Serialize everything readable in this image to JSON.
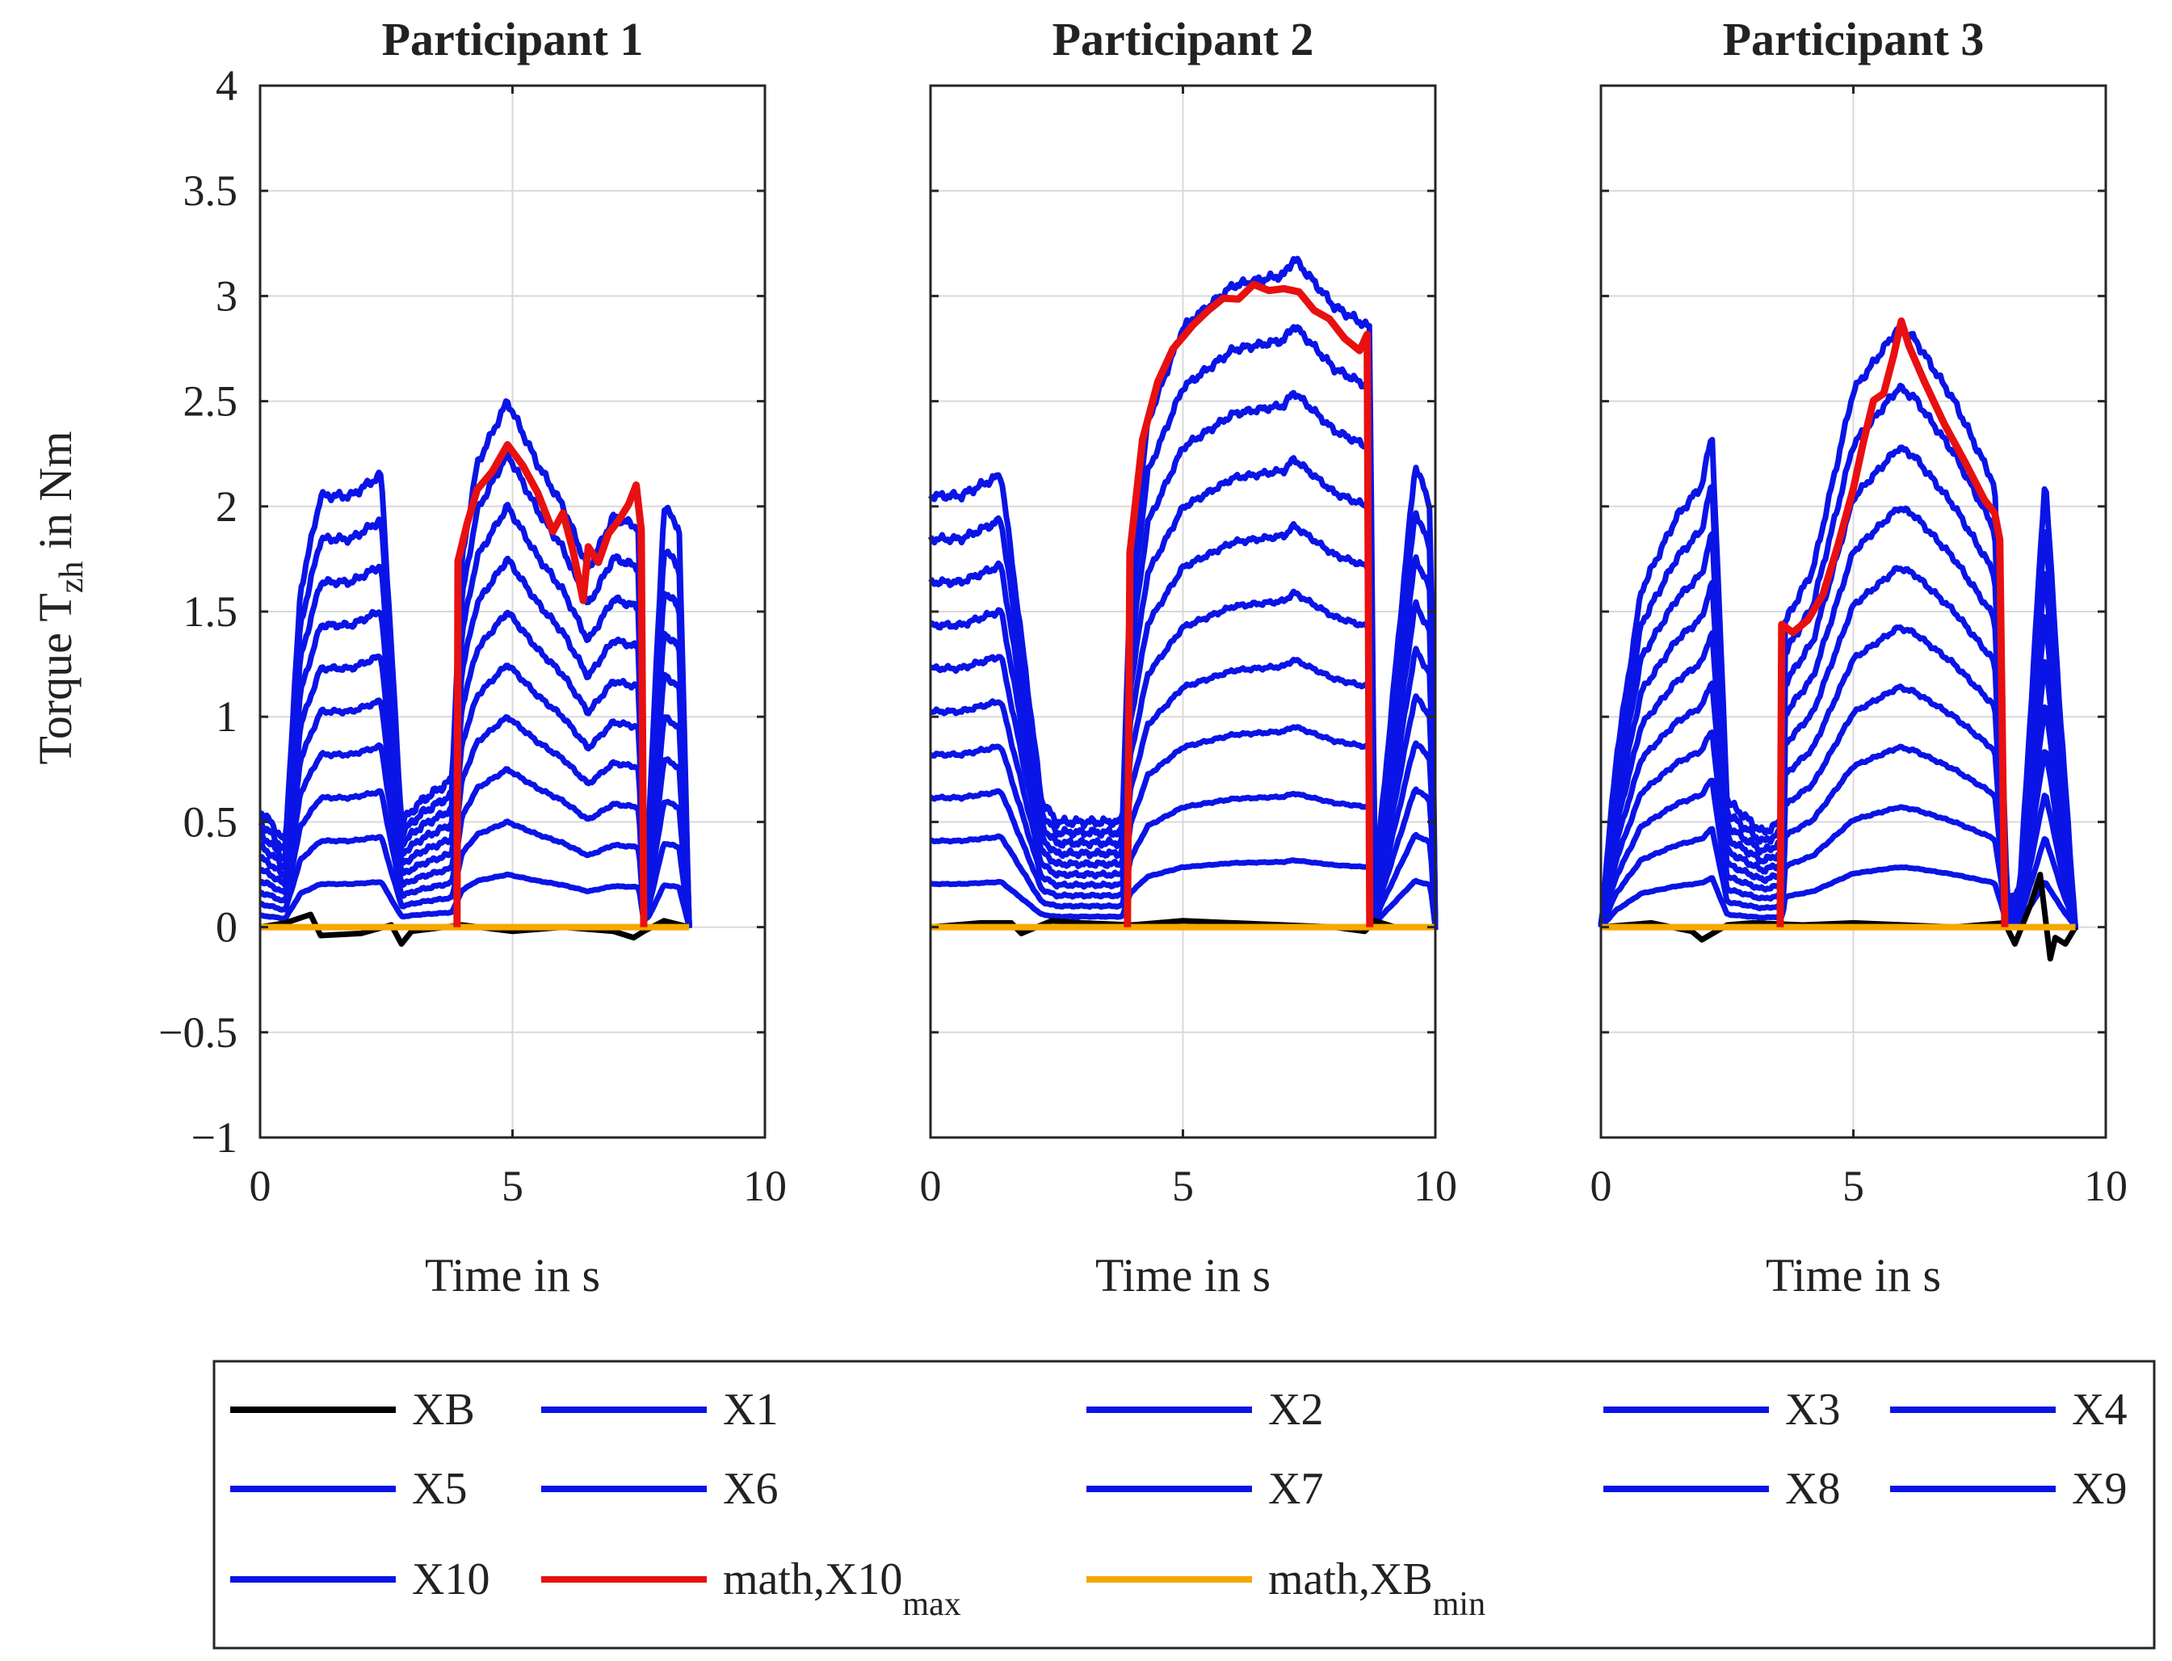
{
  "chart_data": {
    "type": "line",
    "ylabel": "Torque T",
    "ylabel_sub": "zh",
    "ylabel_suffix": " in Nm",
    "xlabel": "Time in s",
    "xlim": [
      0,
      10
    ],
    "ylim": [
      -1,
      4
    ],
    "xticks": [
      0,
      5,
      10
    ],
    "yticks": [
      -1,
      -0.5,
      0,
      0.5,
      1,
      1.5,
      2,
      2.5,
      3,
      3.5,
      4
    ],
    "ytick_labels": [
      "−1",
      "−0.5",
      "0",
      "0.5",
      "1",
      "1.5",
      "2",
      "2.5",
      "3",
      "3.5",
      "4"
    ],
    "grid": true,
    "legend": [
      {
        "label": "XB",
        "color": "#000000"
      },
      {
        "label": "X1",
        "color": "#0a14e6"
      },
      {
        "label": "X2",
        "color": "#0a14e6"
      },
      {
        "label": "X3",
        "color": "#0a14e6"
      },
      {
        "label": "X4",
        "color": "#0a14e6"
      },
      {
        "label": "X5",
        "color": "#0a14e6"
      },
      {
        "label": "X6",
        "color": "#0a14e6"
      },
      {
        "label": "X7",
        "color": "#0a14e6"
      },
      {
        "label": "X8",
        "color": "#0a14e6"
      },
      {
        "label": "X9",
        "color": "#0a14e6"
      },
      {
        "label": "X10",
        "color": "#0a14e6"
      },
      {
        "label": "math,X10",
        "sub": "max",
        "color": "#e81010"
      },
      {
        "label": "math,XB",
        "sub": "min",
        "color": "#f5a800"
      }
    ],
    "colors": {
      "xb": "#000000",
      "x": "#0a14e6",
      "max": "#e81010",
      "min": "#f5a800"
    },
    "panels": [
      {
        "title": "Participant 1",
        "x10_envelope": {
          "x": [
            0,
            0.2,
            0.5,
            0.8,
            1.2,
            1.8,
            2.4,
            2.8,
            3.2,
            3.8,
            4.0,
            4.3,
            4.9,
            5.5,
            6.0,
            6.5,
            7.0,
            7.5,
            7.6,
            7.7,
            8.0,
            8.3,
            8.5
          ],
          "y": [
            0.55,
            0.5,
            0.4,
            1.6,
            2.05,
            2.05,
            2.15,
            0.5,
            0.6,
            0.7,
            1.75,
            2.2,
            2.5,
            2.2,
            2.0,
            1.7,
            1.95,
            1.9,
            0.3,
            0.5,
            2.0,
            1.9,
            0.0
          ]
        },
        "xb": {
          "x": [
            0,
            0.5,
            1.0,
            1.2,
            2.0,
            2.6,
            2.8,
            3.0,
            4.0,
            5.0,
            6.0,
            7.0,
            7.4,
            7.6,
            8.0,
            8.5
          ],
          "y": [
            0.0,
            0.02,
            0.06,
            -0.04,
            -0.03,
            0.01,
            -0.08,
            -0.02,
            0.01,
            -0.02,
            0.0,
            -0.02,
            -0.05,
            -0.02,
            0.03,
            0.0
          ]
        },
        "max_line": {
          "x": [
            3.9,
            3.92,
            4.1,
            4.3,
            4.6,
            4.9,
            5.2,
            5.5,
            5.8,
            6.0,
            6.2,
            6.4,
            6.5,
            6.7,
            6.9,
            7.1,
            7.3,
            7.45,
            7.55,
            7.6
          ],
          "y": [
            0.0,
            1.75,
            1.9,
            2.1,
            2.15,
            2.3,
            2.2,
            2.05,
            1.9,
            1.95,
            1.8,
            1.55,
            1.8,
            1.75,
            1.85,
            1.95,
            2.0,
            2.1,
            1.9,
            0.0
          ]
        },
        "min_line": {
          "x": [
            0,
            8.5
          ],
          "y": [
            0,
            0
          ]
        }
      },
      {
        "title": "Participant 2",
        "x10_envelope": {
          "x": [
            0,
            0.6,
            1.0,
            1.4,
            2.2,
            2.5,
            3.8,
            3.95,
            4.3,
            5.0,
            6.0,
            7.0,
            7.2,
            8.0,
            8.7,
            8.8,
            9.6,
            9.9,
            10.0
          ],
          "y": [
            2.05,
            2.05,
            2.1,
            2.15,
            0.6,
            0.5,
            0.5,
            1.6,
            2.4,
            2.85,
            3.05,
            3.1,
            3.18,
            2.95,
            2.85,
            0.2,
            2.2,
            2.0,
            0.0
          ]
        },
        "xb": {
          "x": [
            0,
            1.0,
            1.6,
            1.8,
            2.4,
            3.0,
            4.0,
            5.0,
            6.0,
            7.0,
            8.0,
            8.6,
            8.8,
            9.2,
            10.0
          ],
          "y": [
            0.0,
            0.02,
            0.02,
            -0.03,
            0.03,
            0.02,
            0.01,
            0.03,
            0.02,
            0.01,
            0.0,
            -0.02,
            0.03,
            0.0,
            0.0
          ]
        },
        "max_line": {
          "x": [
            3.9,
            3.95,
            4.2,
            4.5,
            4.8,
            5.2,
            5.5,
            5.8,
            6.1,
            6.4,
            6.7,
            7.0,
            7.3,
            7.6,
            7.9,
            8.2,
            8.5,
            8.65,
            8.7
          ],
          "y": [
            0.0,
            1.8,
            2.3,
            2.6,
            2.75,
            2.85,
            2.95,
            2.97,
            3.0,
            3.05,
            3.02,
            3.05,
            3.0,
            2.95,
            2.88,
            2.8,
            2.75,
            2.8,
            0.0
          ]
        },
        "min_line": {
          "x": [
            0,
            10.0
          ],
          "y": [
            0,
            0
          ]
        }
      },
      {
        "title": "Participant 3",
        "x10_envelope": {
          "x": [
            0,
            0.3,
            0.8,
            1.5,
            2.0,
            2.2,
            2.5,
            3.2,
            3.6,
            3.65,
            4.2,
            5.0,
            5.9,
            6.2,
            7.0,
            7.8,
            8.05,
            8.3,
            8.8,
            9.1,
            9.4
          ],
          "y": [
            0.0,
            0.8,
            1.6,
            1.95,
            2.1,
            2.35,
            0.6,
            0.45,
            0.5,
            1.45,
            1.7,
            2.55,
            2.85,
            2.8,
            2.5,
            2.1,
            0.1,
            0.2,
            2.15,
            1.0,
            0.0
          ]
        },
        "xb": {
          "x": [
            0,
            1.0,
            1.8,
            2.0,
            2.5,
            3.0,
            4.0,
            5.0,
            6.0,
            7.0,
            8.0,
            8.2,
            8.5,
            8.7,
            8.9,
            9.0,
            9.2,
            9.4
          ],
          "y": [
            0.0,
            0.02,
            -0.02,
            -0.06,
            0.01,
            0.02,
            0.01,
            0.02,
            0.01,
            0.0,
            0.02,
            -0.08,
            0.1,
            0.25,
            -0.15,
            -0.05,
            -0.08,
            0.0
          ]
        },
        "max_line": {
          "x": [
            3.55,
            3.58,
            3.8,
            4.1,
            4.4,
            4.7,
            5.0,
            5.2,
            5.4,
            5.6,
            5.8,
            5.95,
            6.1,
            6.4,
            6.8,
            7.2,
            7.6,
            7.8,
            7.9,
            8.0
          ],
          "y": [
            0.0,
            1.45,
            1.4,
            1.45,
            1.6,
            1.8,
            2.1,
            2.3,
            2.5,
            2.55,
            2.7,
            2.9,
            2.75,
            2.6,
            2.4,
            2.2,
            2.05,
            1.95,
            1.85,
            0.0
          ]
        },
        "min_line": {
          "x": [
            0,
            9.4
          ],
          "y": [
            0,
            0
          ]
        }
      }
    ]
  }
}
